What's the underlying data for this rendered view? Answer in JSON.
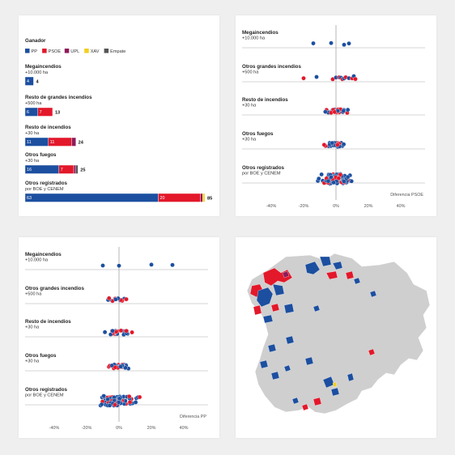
{
  "colors": {
    "PP": "#1c4fa0",
    "PSOE": "#e3182a",
    "UPL": "#8e1a5a",
    "XAV": "#f2cf1c",
    "Empate": "#555555",
    "axis": "#888888",
    "map_land": "#cfcfcf"
  },
  "panel_winner": {
    "title": "Ganador",
    "legend": [
      {
        "key": "PP",
        "label": "PP"
      },
      {
        "key": "PSOE",
        "label": "PSOE"
      },
      {
        "key": "UPL",
        "label": "UPL"
      },
      {
        "key": "XAV",
        "label": "XAV"
      },
      {
        "key": "Empate",
        "label": "Empate"
      }
    ]
  },
  "categories": [
    {
      "title": "Megaincendios",
      "sub": "+10.000 ha"
    },
    {
      "title": "Resto de grandes incendios",
      "sub": "+500 ha"
    },
    {
      "title": "Resto de incendios",
      "sub": "+30 ha"
    },
    {
      "title": "Otros fuegos",
      "sub": "+30 ha"
    },
    {
      "title": "Otros registrados",
      "sub": "por BOE y CENEM"
    }
  ],
  "categories_beeswarm": [
    {
      "title": "Megaincendios",
      "sub": "+10.000 ha"
    },
    {
      "title": "Otros grandes incendios",
      "sub": "+500 ha"
    },
    {
      "title": "Resto de incendios",
      "sub": "+30 ha"
    },
    {
      "title": "Otros fuegos",
      "sub": "+30 ha"
    },
    {
      "title": "Otros registrados",
      "sub": "por BOE y CENEM"
    }
  ],
  "ticks": [
    "-40%",
    "-20%",
    "0%",
    "20%",
    "40%"
  ],
  "chart_data": [
    {
      "type": "bar",
      "title": "Ganador",
      "categories": [
        "Megaincendios",
        "Resto de grandes incendios",
        "Resto de incendios",
        "Otros fuegos",
        "Otros registrados"
      ],
      "series": [
        {
          "name": "PP",
          "values": [
            4,
            6,
            11,
            16,
            63
          ],
          "labels": [
            "4",
            "6",
            "11",
            "16",
            "63"
          ]
        },
        {
          "name": "PSOE",
          "values": [
            0,
            7,
            11,
            7,
            20
          ],
          "labels": [
            "",
            "7",
            "11",
            "7",
            "20"
          ]
        },
        {
          "name": "UPL",
          "values": [
            0,
            0,
            2,
            1,
            1
          ],
          "labels": [
            "",
            "",
            "",
            "",
            ""
          ]
        },
        {
          "name": "XAV",
          "values": [
            0,
            0,
            0,
            0,
            1
          ],
          "labels": [
            "",
            "",
            "",
            "",
            ""
          ]
        },
        {
          "name": "Empate",
          "values": [
            0,
            0,
            0,
            1,
            0
          ],
          "labels": [
            "",
            "",
            "",
            "",
            ""
          ]
        }
      ],
      "totals": [
        "4",
        "13",
        "24",
        "25",
        "85"
      ],
      "xlim": [
        0,
        85
      ]
    },
    {
      "type": "scatter",
      "xlabel": "Diferencia PSOE",
      "xlim": [
        -55,
        55
      ],
      "rows": [
        {
          "n": 4,
          "spread": 12,
          "xs": [
            -14,
            -3,
            5,
            8
          ],
          "red_share": 0.0
        },
        {
          "n": 13,
          "spread": 8,
          "xs": [
            -20,
            -12,
            -2,
            0,
            2,
            3,
            4,
            5,
            6,
            8,
            10,
            11,
            12
          ],
          "red_share": 0.55
        },
        {
          "n": 24,
          "spread": 7,
          "red_share": 0.46
        },
        {
          "n": 25,
          "spread": 5,
          "red_share": 0.3
        },
        {
          "n": 85,
          "spread": 9,
          "red_share": 0.23
        }
      ]
    },
    {
      "type": "scatter",
      "xlabel": "Diferencia PP",
      "xlim": [
        -55,
        55
      ],
      "rows": [
        {
          "n": 4,
          "spread": 10,
          "xs": [
            -10,
            0,
            20,
            33
          ],
          "red_share": 0.0
        },
        {
          "n": 13,
          "spread": 8,
          "red_share": 0.55
        },
        {
          "n": 24,
          "spread": 6,
          "red_share": 0.46
        },
        {
          "n": 25,
          "spread": 6,
          "red_share": 0.3
        },
        {
          "n": 85,
          "spread": 10,
          "red_share": 0.23
        }
      ]
    }
  ]
}
